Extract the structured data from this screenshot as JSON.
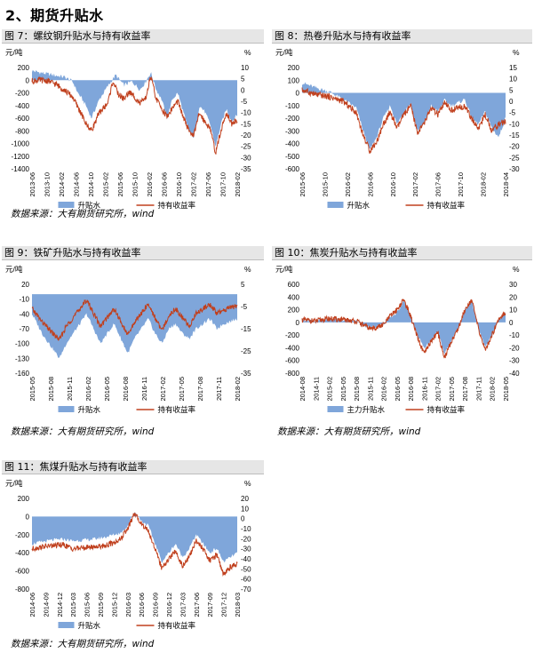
{
  "page": {
    "section_title": "2、期货升贴水"
  },
  "colors": {
    "basis_fill": "#7fa6da",
    "return_line": "#c0401e",
    "title_bg": "#e6e6e6"
  },
  "chart_data": [
    {
      "id": "fig7",
      "title": "图 7：螺纹钢升贴水与持有收益率",
      "type": "area",
      "left_unit": "元/吨",
      "right_unit": "%",
      "left_ticks": [
        200,
        0,
        -200,
        -400,
        -600,
        -800,
        -1000,
        -1200,
        -1400
      ],
      "right_ticks": [
        10,
        5,
        0,
        -5,
        -10,
        -15,
        -20,
        -25,
        -30,
        -35
      ],
      "ylim_left": [
        -1400,
        200
      ],
      "ylim_right": [
        -35,
        10
      ],
      "x_ticks": [
        "2013-06",
        "2013-10",
        "2014-02",
        "2014-06",
        "2014-10",
        "2015-02",
        "2015-06",
        "2015-10",
        "2016-02",
        "2016-06",
        "2016-10",
        "2017-02",
        "2017-06",
        "2017-10",
        "2018-02"
      ],
      "basis_points": [
        [
          0,
          150
        ],
        [
          3,
          120
        ],
        [
          8,
          80
        ],
        [
          12,
          50
        ],
        [
          15,
          -20
        ],
        [
          17,
          -200
        ],
        [
          20,
          -400
        ],
        [
          22,
          -600
        ],
        [
          25,
          -300
        ],
        [
          28,
          -100
        ],
        [
          31,
          80
        ],
        [
          34,
          -80
        ],
        [
          37,
          -20
        ],
        [
          40,
          -150
        ],
        [
          42,
          -30
        ],
        [
          44,
          120
        ],
        [
          46,
          -150
        ],
        [
          48,
          -300
        ],
        [
          50,
          -600
        ],
        [
          52,
          -300
        ],
        [
          54,
          -200
        ],
        [
          56,
          -500
        ],
        [
          58,
          -800
        ],
        [
          60,
          -900
        ],
        [
          62,
          -400
        ],
        [
          64,
          -500
        ],
        [
          66,
          -700
        ],
        [
          68,
          -1050
        ],
        [
          70,
          -700
        ],
        [
          72,
          -450
        ],
        [
          74,
          -650
        ],
        [
          76,
          -550
        ]
      ],
      "return_points": [
        [
          0,
          4
        ],
        [
          3,
          4.5
        ],
        [
          6,
          4
        ],
        [
          9,
          2.5
        ],
        [
          12,
          0
        ],
        [
          15,
          -3
        ],
        [
          18,
          -10
        ],
        [
          20,
          -15
        ],
        [
          22,
          -18
        ],
        [
          25,
          -10
        ],
        [
          28,
          -6
        ],
        [
          30,
          4
        ],
        [
          32,
          -2
        ],
        [
          34,
          -4
        ],
        [
          36,
          -1
        ],
        [
          38,
          -3
        ],
        [
          40,
          -6
        ],
        [
          42,
          -4
        ],
        [
          44,
          6
        ],
        [
          46,
          -4
        ],
        [
          48,
          -8
        ],
        [
          50,
          -12
        ],
        [
          52,
          -8
        ],
        [
          54,
          -5
        ],
        [
          56,
          -12
        ],
        [
          58,
          -18
        ],
        [
          60,
          -20
        ],
        [
          62,
          -10
        ],
        [
          64,
          -14
        ],
        [
          66,
          -17
        ],
        [
          68,
          -28
        ],
        [
          70,
          -18
        ],
        [
          72,
          -10
        ],
        [
          74,
          -15
        ],
        [
          76,
          -13
        ]
      ],
      "legend": [
        "升贴水",
        "持有收益率"
      ],
      "source": "数据来源：大有期货研究所，wind"
    },
    {
      "id": "fig8",
      "title": "图 8：热卷升贴水与持有收益率",
      "type": "area",
      "left_unit": "元/吨",
      "right_unit": "%",
      "left_ticks": [
        200,
        100,
        0,
        -100,
        -200,
        -300,
        -400,
        -500,
        -600
      ],
      "right_ticks": [
        15,
        10,
        5,
        0,
        -5,
        -10,
        -15,
        -20,
        -25,
        -30
      ],
      "ylim_left": [
        -600,
        200
      ],
      "ylim_right": [
        -30,
        15
      ],
      "x_ticks": [
        "2015-06",
        "2015-10",
        "2016-02",
        "2016-06",
        "2016-10",
        "2017-02",
        "2017-06",
        "2017-10",
        "2018-02",
        "2018-04"
      ],
      "basis_points": [
        [
          0,
          80
        ],
        [
          4,
          40
        ],
        [
          8,
          10
        ],
        [
          12,
          -50
        ],
        [
          16,
          -120
        ],
        [
          18,
          -300
        ],
        [
          20,
          -450
        ],
        [
          22,
          -350
        ],
        [
          24,
          -200
        ],
        [
          26,
          -100
        ],
        [
          28,
          -250
        ],
        [
          30,
          -150
        ],
        [
          32,
          -80
        ],
        [
          34,
          -300
        ],
        [
          36,
          -250
        ],
        [
          38,
          -100
        ],
        [
          40,
          -150
        ],
        [
          42,
          -60
        ],
        [
          44,
          -100
        ],
        [
          46,
          -80
        ],
        [
          48,
          -50
        ],
        [
          50,
          -200
        ],
        [
          52,
          -250
        ],
        [
          54,
          -150
        ],
        [
          56,
          -280
        ],
        [
          58,
          -350
        ],
        [
          60,
          -200
        ]
      ],
      "return_points": [
        [
          0,
          5
        ],
        [
          4,
          3
        ],
        [
          8,
          2
        ],
        [
          12,
          0
        ],
        [
          16,
          -5
        ],
        [
          18,
          -15
        ],
        [
          20,
          -22
        ],
        [
          22,
          -18
        ],
        [
          24,
          -10
        ],
        [
          26,
          -5
        ],
        [
          28,
          -12
        ],
        [
          30,
          -6
        ],
        [
          32,
          -2
        ],
        [
          34,
          -14
        ],
        [
          36,
          -10
        ],
        [
          38,
          -3
        ],
        [
          40,
          -6
        ],
        [
          42,
          -1
        ],
        [
          44,
          -4
        ],
        [
          46,
          -3
        ],
        [
          48,
          -2
        ],
        [
          50,
          -8
        ],
        [
          52,
          -12
        ],
        [
          54,
          -6
        ],
        [
          56,
          -13
        ],
        [
          58,
          -10
        ],
        [
          60,
          -9
        ]
      ],
      "legend": [
        "升贴水",
        "持有收益率"
      ],
      "source": ""
    },
    {
      "id": "fig9",
      "title": "图 9：铁矿升贴水与持有收益率",
      "type": "area",
      "left_unit": "元/吨",
      "right_unit": "%",
      "left_ticks": [
        20,
        -10,
        -40,
        -70,
        -100,
        -130,
        -160
      ],
      "right_ticks": [
        5,
        -5,
        -15,
        -25,
        -35
      ],
      "ylim_left": [
        -160,
        20
      ],
      "ylim_right": [
        -35,
        5
      ],
      "x_ticks": [
        "2015-05",
        "2015-08",
        "2015-11",
        "2016-02",
        "2016-05",
        "2016-08",
        "2016-11",
        "2017-02",
        "2017-05",
        "2017-08",
        "2017-11",
        "2018-02"
      ],
      "basis_points": [
        [
          0,
          -40
        ],
        [
          3,
          -80
        ],
        [
          6,
          -110
        ],
        [
          8,
          -130
        ],
        [
          10,
          -100
        ],
        [
          12,
          -80
        ],
        [
          14,
          -60
        ],
        [
          16,
          -40
        ],
        [
          18,
          -70
        ],
        [
          20,
          -100
        ],
        [
          22,
          -80
        ],
        [
          24,
          -60
        ],
        [
          26,
          -90
        ],
        [
          28,
          -120
        ],
        [
          30,
          -90
        ],
        [
          32,
          -70
        ],
        [
          34,
          -50
        ],
        [
          36,
          -80
        ],
        [
          38,
          -100
        ],
        [
          40,
          -70
        ],
        [
          42,
          -60
        ],
        [
          44,
          -80
        ],
        [
          46,
          -90
        ],
        [
          48,
          -70
        ],
        [
          50,
          -60
        ],
        [
          52,
          -50
        ],
        [
          54,
          -70
        ],
        [
          56,
          -60
        ],
        [
          58,
          -55
        ],
        [
          60,
          -50
        ]
      ],
      "return_points": [
        [
          0,
          -6
        ],
        [
          3,
          -12
        ],
        [
          6,
          -17
        ],
        [
          8,
          -20
        ],
        [
          10,
          -14
        ],
        [
          12,
          -10
        ],
        [
          14,
          -6
        ],
        [
          16,
          -2
        ],
        [
          18,
          -8
        ],
        [
          20,
          -14
        ],
        [
          22,
          -10
        ],
        [
          24,
          -6
        ],
        [
          26,
          -12
        ],
        [
          28,
          -18
        ],
        [
          30,
          -12
        ],
        [
          32,
          -8
        ],
        [
          34,
          -4
        ],
        [
          36,
          -10
        ],
        [
          38,
          -16
        ],
        [
          40,
          -9
        ],
        [
          42,
          -6
        ],
        [
          44,
          -10
        ],
        [
          46,
          -14
        ],
        [
          48,
          -8
        ],
        [
          50,
          -6
        ],
        [
          52,
          -4
        ],
        [
          54,
          -8
        ],
        [
          56,
          -7
        ],
        [
          58,
          -5
        ],
        [
          60,
          -5
        ]
      ],
      "legend": [
        "升贴水",
        "持有收益率"
      ],
      "source": "数据来源：大有期货研究所，wind"
    },
    {
      "id": "fig10",
      "title": "图 10：焦炭升贴水与持有收益率",
      "type": "area",
      "left_unit": "元/吨",
      "right_unit": "%",
      "left_ticks": [
        600,
        400,
        200,
        0,
        -200,
        -400,
        -600,
        -800
      ],
      "right_ticks": [
        30,
        20,
        10,
        0,
        -10,
        -20,
        -30,
        -40
      ],
      "ylim_left": [
        -800,
        600
      ],
      "ylim_right": [
        -40,
        30
      ],
      "x_ticks": [
        "2014-08",
        "2014-11",
        "2015-02",
        "2015-05",
        "2015-08",
        "2015-11",
        "2016-02",
        "2016-05",
        "2016-08",
        "2016-11",
        "2017-02",
        "2017-05",
        "2017-08",
        "2017-11",
        "2018-02",
        "2018-05"
      ],
      "basis_points": [
        [
          0,
          50
        ],
        [
          4,
          20
        ],
        [
          8,
          60
        ],
        [
          12,
          40
        ],
        [
          16,
          20
        ],
        [
          18,
          -40
        ],
        [
          20,
          -80
        ],
        [
          22,
          -60
        ],
        [
          24,
          -30
        ],
        [
          26,
          80
        ],
        [
          28,
          150
        ],
        [
          30,
          350
        ],
        [
          32,
          100
        ],
        [
          34,
          -200
        ],
        [
          36,
          -400
        ],
        [
          38,
          -300
        ],
        [
          40,
          -150
        ],
        [
          42,
          -500
        ],
        [
          44,
          -300
        ],
        [
          46,
          -100
        ],
        [
          48,
          200
        ],
        [
          50,
          350
        ],
        [
          52,
          -100
        ],
        [
          54,
          -400
        ],
        [
          56,
          -200
        ],
        [
          58,
          50
        ],
        [
          60,
          150
        ]
      ],
      "return_points": [
        [
          0,
          2
        ],
        [
          4,
          1
        ],
        [
          8,
          3
        ],
        [
          12,
          2
        ],
        [
          16,
          1
        ],
        [
          18,
          -2
        ],
        [
          20,
          -5
        ],
        [
          22,
          -4
        ],
        [
          24,
          -2
        ],
        [
          26,
          5
        ],
        [
          28,
          10
        ],
        [
          30,
          18
        ],
        [
          32,
          5
        ],
        [
          34,
          -12
        ],
        [
          36,
          -25
        ],
        [
          38,
          -15
        ],
        [
          40,
          -8
        ],
        [
          42,
          -28
        ],
        [
          44,
          -15
        ],
        [
          46,
          -5
        ],
        [
          48,
          10
        ],
        [
          50,
          18
        ],
        [
          52,
          -5
        ],
        [
          54,
          -22
        ],
        [
          56,
          -10
        ],
        [
          58,
          3
        ],
        [
          60,
          8
        ]
      ],
      "legend": [
        "主力升贴水",
        "持有收益率"
      ],
      "source": "数据来源：大有期货研究所，wind"
    },
    {
      "id": "fig11",
      "title": "图 11：焦煤升贴水与持有收益率",
      "type": "area",
      "left_unit": "元/吨",
      "right_unit": "%",
      "left_ticks": [
        200,
        0,
        -200,
        -400,
        -600,
        -800
      ],
      "right_ticks": [
        20,
        10,
        0,
        -10,
        -20,
        -30,
        -40,
        -50,
        -60,
        -70
      ],
      "ylim_left": [
        -800,
        200
      ],
      "ylim_right": [
        -70,
        20
      ],
      "x_ticks": [
        "2014-06",
        "2014-09",
        "2014-12",
        "2015-03",
        "2015-06",
        "2015-09",
        "2015-12",
        "2016-03",
        "2016-06",
        "2016-09",
        "2016-12",
        "2017-03",
        "2017-06",
        "2017-09",
        "2017-12",
        "2018-03"
      ],
      "basis_points": [
        [
          0,
          -300
        ],
        [
          3,
          -280
        ],
        [
          6,
          -260
        ],
        [
          9,
          -250
        ],
        [
          12,
          -270
        ],
        [
          15,
          -260
        ],
        [
          18,
          -250
        ],
        [
          21,
          -230
        ],
        [
          24,
          -200
        ],
        [
          26,
          -180
        ],
        [
          28,
          -100
        ],
        [
          30,
          50
        ],
        [
          32,
          -50
        ],
        [
          34,
          -100
        ],
        [
          36,
          -300
        ],
        [
          38,
          -500
        ],
        [
          40,
          -400
        ],
        [
          42,
          -300
        ],
        [
          44,
          -450
        ],
        [
          46,
          -350
        ],
        [
          48,
          -200
        ],
        [
          50,
          -300
        ],
        [
          52,
          -400
        ],
        [
          54,
          -350
        ],
        [
          56,
          -500
        ],
        [
          58,
          -450
        ],
        [
          60,
          -400
        ]
      ],
      "return_points": [
        [
          0,
          -30
        ],
        [
          3,
          -28
        ],
        [
          6,
          -27
        ],
        [
          9,
          -26
        ],
        [
          12,
          -30
        ],
        [
          15,
          -29
        ],
        [
          18,
          -28
        ],
        [
          21,
          -27
        ],
        [
          24,
          -24
        ],
        [
          26,
          -20
        ],
        [
          28,
          -10
        ],
        [
          30,
          5
        ],
        [
          32,
          -5
        ],
        [
          34,
          -12
        ],
        [
          36,
          -30
        ],
        [
          38,
          -50
        ],
        [
          40,
          -40
        ],
        [
          42,
          -32
        ],
        [
          44,
          -48
        ],
        [
          46,
          -38
        ],
        [
          48,
          -22
        ],
        [
          50,
          -30
        ],
        [
          52,
          -42
        ],
        [
          54,
          -36
        ],
        [
          56,
          -55
        ],
        [
          58,
          -48
        ],
        [
          60,
          -45
        ]
      ],
      "legend": [
        "升贴水",
        "持有收益率"
      ],
      "source": "数据来源：大有期货研究所，wind"
    }
  ]
}
